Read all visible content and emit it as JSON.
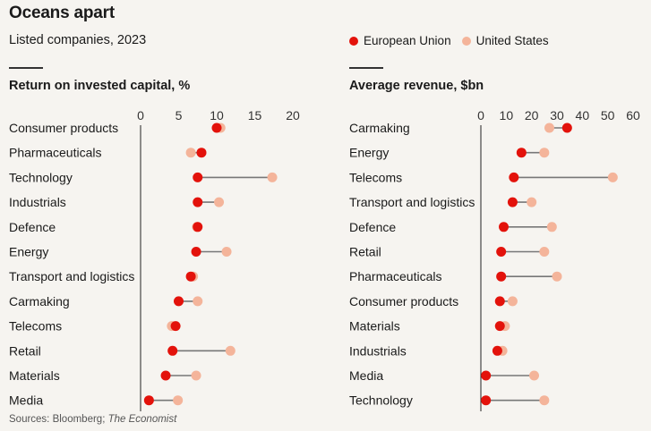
{
  "header": {
    "title": "Oceans apart",
    "subtitle": "Listed companies, 2023",
    "source_prefix": "Sources: Bloomberg; ",
    "source_italic": "The Economist"
  },
  "legend": [
    {
      "label": "European Union",
      "color": "#e3120b"
    },
    {
      "label": "United States",
      "color": "#f4b49a"
    }
  ],
  "chart_data": [
    {
      "type": "dot",
      "title": "Return on invested capital, %",
      "xlim": [
        0,
        20
      ],
      "xticks": [
        0,
        5,
        10,
        15,
        20
      ],
      "categories": [
        "Consumer products",
        "Pharmaceuticals",
        "Technology",
        "Industrials",
        "Defence",
        "Energy",
        "Transport and logistics",
        "Carmaking",
        "Telecoms",
        "Retail",
        "Materials",
        "Media"
      ],
      "series": [
        {
          "name": "European Union",
          "color": "#e3120b",
          "values": [
            10,
            8,
            7.5,
            7.5,
            7.5,
            7.3,
            6.6,
            5,
            4.6,
            4.2,
            3.3,
            1.1
          ]
        },
        {
          "name": "United States",
          "color": "#f4b49a",
          "values": [
            10.5,
            6.6,
            17.3,
            10.3,
            7.4,
            11.3,
            6.9,
            7.5,
            4.1,
            11.8,
            7.3,
            4.9
          ]
        }
      ]
    },
    {
      "type": "dot",
      "title": "Average revenue, $bn",
      "xlim": [
        0,
        60
      ],
      "xticks": [
        0,
        10,
        20,
        30,
        40,
        50,
        60
      ],
      "categories": [
        "Carmaking",
        "Energy",
        "Telecoms",
        "Transport and logistics",
        "Defence",
        "Retail",
        "Pharmaceuticals",
        "Consumer products",
        "Materials",
        "Industrials",
        "Media",
        "Technology"
      ],
      "series": [
        {
          "name": "European Union",
          "color": "#e3120b",
          "values": [
            34,
            16,
            13,
            12.5,
            9,
            8,
            8,
            7.5,
            7.5,
            6.5,
            2,
            2
          ]
        },
        {
          "name": "United States",
          "color": "#f4b49a",
          "values": [
            27,
            25,
            52,
            20,
            28,
            25,
            30,
            12.5,
            9.5,
            8.5,
            21,
            25
          ]
        }
      ]
    }
  ]
}
